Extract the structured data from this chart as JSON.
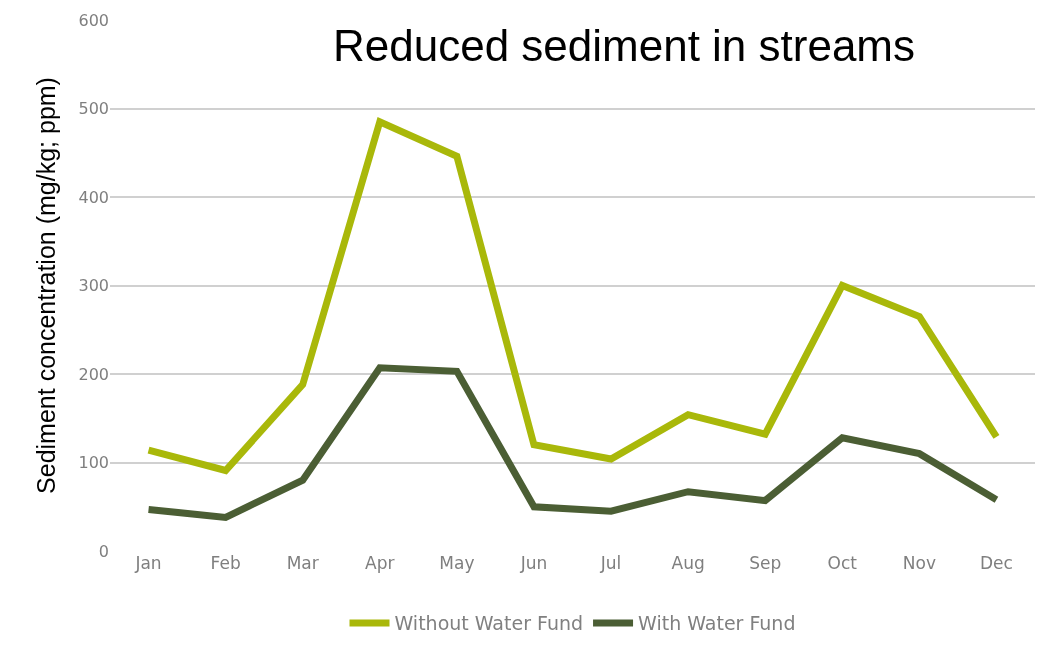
{
  "chart_data": {
    "type": "line",
    "title": "Reduced sediment in streams",
    "ylabel": "Sediment concentration (mg/kg; ppm)",
    "categories": [
      "Jan",
      "Feb",
      "Mar",
      "Apr",
      "May",
      "Jun",
      "Jul",
      "Aug",
      "Sep",
      "Oct",
      "Nov",
      "Dec"
    ],
    "series": [
      {
        "name": "Without Water Fund",
        "color": "#a9b80a",
        "values": [
          114,
          91,
          188,
          485,
          446,
          120,
          104,
          154,
          132,
          300,
          265,
          129
        ]
      },
      {
        "name": "With Water Fund",
        "color": "#4b5e34",
        "values": [
          47,
          38,
          80,
          207,
          203,
          50,
          45,
          67,
          57,
          128,
          110,
          58
        ]
      }
    ],
    "ylim": [
      0,
      600
    ],
    "yticks": [
      0,
      100,
      200,
      300,
      400,
      500,
      600
    ],
    "grid": "y",
    "legend": "bottom",
    "marker": "none",
    "line_style": "solid"
  }
}
